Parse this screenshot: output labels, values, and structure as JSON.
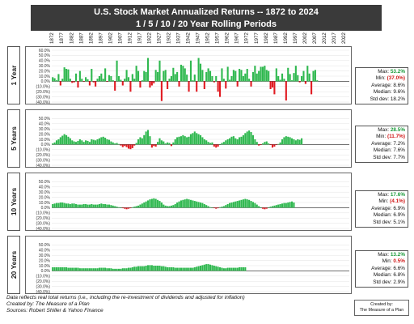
{
  "title": "U.S. Stock Market Annualized Returns -- 1872 to 2024",
  "subtitle": "1 / 5 / 10 / 20 Year Rolling Periods",
  "year_labels": [
    "1872",
    "1877",
    "1882",
    "1887",
    "1892",
    "1897",
    "1902",
    "1907",
    "1912",
    "1917",
    "1922",
    "1927",
    "1932",
    "1937",
    "1942",
    "1947",
    "1952",
    "1957",
    "1962",
    "1967",
    "1972",
    "1977",
    "1982",
    "1987",
    "1992",
    "1997",
    "2002",
    "2007",
    "2012",
    "2017",
    "2022"
  ],
  "stats_labels": {
    "max": "Max:",
    "min": "Min:",
    "avg": "Average:",
    "median": "Median:",
    "std": "Std dev:"
  },
  "colors": {
    "positive": "#2fb84f",
    "negative": "#e11b22",
    "grid": "#e2e2e2",
    "zero": "#444444"
  },
  "footnotes": [
    "Data reflects real total returns (i.e., including the re-investment of dividends and adjusted for inflation)",
    "Created by: The Measure of a Plan",
    "Sources: Robert Shiller & Yahoo Finance"
  ],
  "credit": [
    "Created by:",
    "The Measure of a Plan"
  ],
  "chart_data": [
    {
      "type": "bar",
      "panel_label": "1 Year",
      "start_year": 1872,
      "ylim": [
        -40,
        60
      ],
      "ytick_labels": [
        "60.0%",
        "50.0%",
        "40.0%",
        "30.0%",
        "20.0%",
        "10.0%",
        "0.0%",
        "(10.0%)",
        "(20.0%)",
        "(30.0%)",
        "(40.0%)"
      ],
      "values": [
        8,
        6,
        2,
        14,
        -8,
        5,
        27,
        24,
        23,
        5,
        -3,
        -2,
        15,
        -12,
        20,
        5,
        -1,
        8,
        4,
        -8,
        24,
        -2,
        -10,
        5,
        10,
        15,
        5,
        25,
        -1,
        12,
        10,
        2,
        -18,
        40,
        10,
        3,
        -8,
        5,
        22,
        8,
        -20,
        14,
        5,
        30,
        20,
        -12,
        2,
        20,
        18,
        45,
        -12,
        -8,
        -4,
        22,
        18,
        40,
        -38,
        20,
        22,
        -15,
        5,
        10,
        26,
        14,
        18,
        -10,
        32,
        30,
        25,
        13,
        -20,
        40,
        2,
        13,
        -20,
        45,
        34,
        22,
        -15,
        18,
        25,
        20,
        10,
        -2,
        10,
        -20,
        -30,
        25,
        5,
        -14,
        28,
        3,
        10,
        22,
        20,
        -10,
        24,
        22,
        10,
        15,
        24,
        5,
        -10,
        18,
        30,
        15,
        20,
        28,
        28,
        30,
        22,
        20,
        -15,
        -12,
        -25,
        25,
        10,
        3,
        15,
        5,
        -37,
        26,
        14,
        2,
        16,
        30,
        12,
        -2,
        10,
        20,
        -5,
        30,
        15,
        -25,
        20,
        22,
        2
      ],
      "stats": {
        "max": "53.2%",
        "min": "(37.0%)",
        "avg": "8.6%",
        "median": "9.6%",
        "std": "18.2%"
      }
    },
    {
      "type": "bar",
      "panel_label": "5 Years",
      "start_year": 1872,
      "ylim": [
        -40,
        60
      ],
      "ytick_labels": [
        "50.0%",
        "40.0%",
        "30.0%",
        "20.0%",
        "10.0%",
        "0.0%",
        "(10.0%)",
        "(20.0%)",
        "(30.0%)",
        "(40.0%)"
      ],
      "values": [
        2,
        4,
        8,
        10,
        14,
        17,
        20,
        18,
        15,
        12,
        8,
        6,
        5,
        7,
        10,
        8,
        5,
        8,
        7,
        5,
        10,
        9,
        8,
        10,
        12,
        14,
        15,
        13,
        10,
        9,
        6,
        4,
        2,
        3,
        1,
        -2,
        -5,
        -3,
        -5,
        -8,
        -9,
        -7,
        -2,
        3,
        10,
        14,
        12,
        18,
        25,
        28,
        16,
        -6,
        -3,
        -4,
        5,
        12,
        8,
        6,
        2,
        4,
        3,
        -3,
        4,
        10,
        14,
        15,
        16,
        18,
        16,
        14,
        15,
        20,
        22,
        25,
        22,
        20,
        18,
        14,
        10,
        8,
        5,
        3,
        4,
        -4,
        -6,
        -4,
        0,
        3,
        5,
        8,
        10,
        12,
        15,
        16,
        12,
        10,
        14,
        15,
        18,
        22,
        25,
        27,
        24,
        18,
        10,
        5,
        -2,
        -1,
        2,
        5,
        6,
        2,
        -1,
        -6,
        -4,
        -1,
        1,
        4,
        10,
        14,
        16,
        15,
        14,
        12,
        10,
        8,
        10,
        9,
        12
      ],
      "stats": {
        "max": "28.5%",
        "min": "(11.7%)",
        "avg": "7.2%",
        "median": "7.6%",
        "std": "7.7%"
      }
    },
    {
      "type": "bar",
      "panel_label": "10 Years",
      "start_year": 1872,
      "ylim": [
        -40,
        60
      ],
      "ytick_labels": [
        "50.0%",
        "40.0%",
        "30.0%",
        "20.0%",
        "10.0%",
        "0.0%",
        "(10.0%)",
        "(20.0%)",
        "(30.0%)",
        "(40.0%)"
      ],
      "values": [
        7,
        8,
        9,
        9,
        10,
        10,
        9,
        8,
        8,
        7,
        8,
        8,
        7,
        6,
        6,
        6,
        7,
        7,
        6,
        6,
        7,
        6,
        6,
        6,
        7,
        8,
        7,
        7,
        6,
        6,
        5,
        4,
        3,
        2,
        1,
        0,
        -1,
        -2,
        -3,
        -2,
        -1,
        1,
        2,
        3,
        4,
        6,
        8,
        10,
        12,
        14,
        16,
        17,
        18,
        17,
        15,
        13,
        10,
        6,
        4,
        3,
        3,
        4,
        5,
        7,
        10,
        12,
        14,
        15,
        16,
        17,
        16,
        15,
        14,
        13,
        12,
        11,
        10,
        9,
        7,
        5,
        3,
        1,
        0,
        -1,
        -2,
        -1,
        1,
        2,
        3,
        5,
        7,
        9,
        10,
        11,
        12,
        13,
        14,
        15,
        16,
        17,
        16,
        15,
        13,
        11,
        9,
        6,
        3,
        0,
        -2,
        -3,
        -2,
        0,
        2,
        3,
        4,
        5,
        6,
        7,
        8,
        9,
        9,
        10,
        11,
        12,
        10
      ],
      "stats": {
        "max": "17.6%",
        "min": "(4.1%)",
        "avg": "6.9%",
        "median": "6.9%",
        "std": "5.1%"
      }
    },
    {
      "type": "bar",
      "panel_label": "20 Years",
      "start_year": 1872,
      "ylim": [
        -40,
        60
      ],
      "ytick_labels": [
        "50.0%",
        "40.0%",
        "30.0%",
        "20.0%",
        "10.0%",
        "0.0%",
        "(10.0%)",
        "(20.0%)",
        "(30.0%)",
        "(40.0%)"
      ],
      "values": [
        7,
        7,
        7,
        7,
        7,
        7,
        7,
        7,
        6,
        6,
        6,
        6,
        6,
        6,
        5,
        5,
        5,
        5,
        5,
        5,
        5,
        5,
        5,
        5,
        6,
        6,
        6,
        6,
        5,
        5,
        5,
        4,
        4,
        4,
        4,
        4,
        5,
        5,
        5,
        6,
        6,
        7,
        8,
        8,
        9,
        9,
        9,
        9,
        10,
        11,
        11,
        11,
        10,
        10,
        10,
        10,
        9,
        9,
        8,
        7,
        7,
        7,
        7,
        6,
        6,
        6,
        6,
        6,
        6,
        6,
        6,
        6,
        6,
        7,
        8,
        9,
        10,
        11,
        12,
        13,
        13,
        12,
        11,
        10,
        9,
        8,
        7,
        6,
        5,
        5,
        6,
        6,
        6,
        6,
        6,
        6,
        7,
        7,
        7,
        7
      ],
      "stats": {
        "max": "13.2%",
        "min": "0.5%",
        "avg": "6.6%",
        "median": "6.8%",
        "std": "2.9%"
      }
    }
  ]
}
